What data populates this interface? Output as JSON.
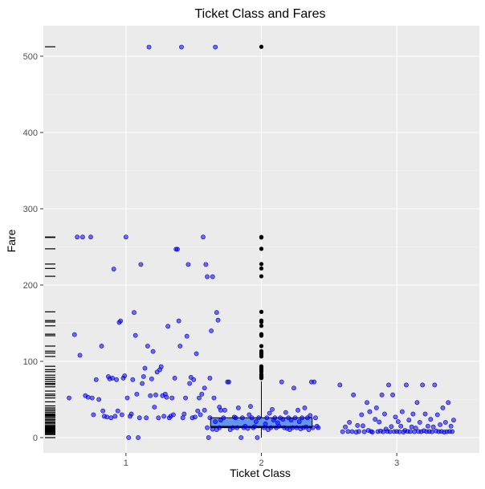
{
  "chart_data": {
    "type": "boxplot-jitter",
    "title": "Ticket Class and Fares",
    "xlabel": "Ticket Class",
    "ylabel": "Fare",
    "categories": [
      "1",
      "2",
      "3"
    ],
    "ylim": [
      -20,
      540
    ],
    "yticks": [
      0,
      100,
      200,
      300,
      400,
      500
    ],
    "grid": true,
    "colors": {
      "box": "#6495ed",
      "points": "#0000ff",
      "outliers": "#000000",
      "rug": "#000000"
    },
    "boxes": [
      {
        "category": "2",
        "q1": 13,
        "median": 14.25,
        "q3": 26,
        "whisker_low": 0,
        "whisker_high": 73.5,
        "outliers": [
          77.96,
          78.85,
          79.2,
          79.65,
          81.86,
          82.17,
          83.16,
          86.5,
          89.1,
          90,
          91.08,
          93.5,
          106.43,
          108.9,
          110.88,
          113.28,
          120,
          133.65,
          134.5,
          135.63,
          146.52,
          151.55,
          153.46,
          164.87,
          211.5,
          221.78,
          227.53,
          247.52,
          262.37,
          263,
          512.33
        ]
      }
    ],
    "rug_values": [
      0,
      4,
      5,
      6.24,
      6.5,
      7,
      7.25,
      7.5,
      7.75,
      8,
      8.5,
      9,
      9.5,
      10.5,
      11.5,
      12.5,
      13,
      14,
      15,
      16,
      18,
      19.5,
      21,
      23,
      24,
      26,
      27.7,
      29,
      30,
      31,
      33,
      35,
      37,
      39,
      41.58,
      46.9,
      52,
      55,
      57,
      61,
      66.6,
      69.55,
      71,
      73.5,
      76.29,
      78.85,
      81.86,
      86.5,
      89.1,
      93.5,
      106.43,
      110.88,
      113.28,
      120,
      133.65,
      135.63,
      146.52,
      151.55,
      153.46,
      164.87,
      211.5,
      221.78,
      227.53,
      247.52,
      262.37,
      263,
      512.33
    ],
    "points": {
      "1": [
        [
          -0.42,
          52
        ],
        [
          -0.38,
          135
        ],
        [
          -0.36,
          263
        ],
        [
          -0.34,
          108
        ],
        [
          -0.32,
          263
        ],
        [
          -0.3,
          55
        ],
        [
          -0.28,
          53
        ],
        [
          -0.26,
          263
        ],
        [
          -0.25,
          52
        ],
        [
          -0.24,
          30
        ],
        [
          -0.22,
          76
        ],
        [
          -0.2,
          50
        ],
        [
          -0.18,
          120
        ],
        [
          -0.17,
          35
        ],
        [
          -0.16,
          28
        ],
        [
          -0.14,
          27
        ],
        [
          -0.13,
          80
        ],
        [
          -0.12,
          77
        ],
        [
          -0.11,
          26
        ],
        [
          -0.1,
          78
        ],
        [
          -0.09,
          221
        ],
        [
          -0.08,
          28
        ],
        [
          -0.07,
          76
        ],
        [
          -0.06,
          35
        ],
        [
          -0.05,
          151
        ],
        [
          -0.04,
          153
        ],
        [
          -0.03,
          30
        ],
        [
          -0.02,
          78
        ],
        [
          -0.01,
          81
        ],
        [
          0,
          263
        ],
        [
          0.01,
          52
        ],
        [
          0.02,
          0
        ],
        [
          0.03,
          28
        ],
        [
          0.04,
          31
        ],
        [
          0.05,
          76
        ],
        [
          0.06,
          164
        ],
        [
          0.07,
          134
        ],
        [
          0.08,
          57
        ],
        [
          0.09,
          0
        ],
        [
          0.1,
          26
        ],
        [
          0.11,
          227
        ],
        [
          0.12,
          71
        ],
        [
          0.13,
          80
        ],
        [
          0.14,
          91
        ],
        [
          0.15,
          26
        ],
        [
          0.16,
          120
        ],
        [
          0.17,
          512
        ],
        [
          0.18,
          55
        ],
        [
          0.19,
          77
        ],
        [
          0.2,
          113
        ],
        [
          0.21,
          40
        ],
        [
          0.22,
          56
        ],
        [
          0.23,
          86
        ],
        [
          0.24,
          26
        ],
        [
          0.25,
          89
        ],
        [
          0.26,
          93
        ],
        [
          0.27,
          55
        ],
        [
          0.28,
          28
        ],
        [
          0.29,
          57
        ],
        [
          0.3,
          53
        ],
        [
          0.31,
          146
        ],
        [
          0.32,
          26
        ],
        [
          0.33,
          28
        ],
        [
          0.34,
          52
        ],
        [
          0.35,
          30
        ],
        [
          0.36,
          78
        ],
        [
          0.37,
          247
        ],
        [
          0.38,
          247
        ],
        [
          0.39,
          153
        ],
        [
          0.4,
          120
        ],
        [
          0.41,
          512
        ],
        [
          0.42,
          26
        ],
        [
          0.43,
          31
        ],
        [
          0.44,
          52
        ],
        [
          0.45,
          133
        ],
        [
          0.46,
          227
        ],
        [
          0.47,
          71
        ],
        [
          0.48,
          79
        ],
        [
          0.49,
          26
        ],
        [
          0.5,
          76
        ],
        [
          0.51,
          27
        ],
        [
          0.52,
          110
        ],
        [
          0.53,
          35
        ],
        [
          0.54,
          52
        ],
        [
          0.55,
          30
        ],
        [
          0.56,
          57
        ],
        [
          0.57,
          263
        ],
        [
          0.58,
          36
        ],
        [
          0.59,
          227
        ],
        [
          0.6,
          211
        ],
        [
          0.61,
          0
        ],
        [
          0.62,
          78
        ],
        [
          0.63,
          140
        ],
        [
          0.64,
          211
        ],
        [
          0.65,
          52
        ],
        [
          0.66,
          512
        ],
        [
          0.67,
          164
        ],
        [
          0.68,
          154
        ],
        [
          0.69,
          40
        ],
        [
          0.7,
          36
        ]
      ],
      "2": [
        [
          -0.42,
          65
        ],
        [
          -0.4,
          13
        ],
        [
          -0.38,
          26
        ],
        [
          -0.36,
          11
        ],
        [
          -0.34,
          21
        ],
        [
          -0.33,
          10.5
        ],
        [
          -0.31,
          13
        ],
        [
          -0.3,
          23
        ],
        [
          -0.28,
          26
        ],
        [
          -0.27,
          36
        ],
        [
          -0.25,
          73
        ],
        [
          -0.24,
          73
        ],
        [
          -0.23,
          10.5
        ],
        [
          -0.21,
          13
        ],
        [
          -0.2,
          27
        ],
        [
          -0.19,
          26
        ],
        [
          -0.18,
          13
        ],
        [
          -0.17,
          39
        ],
        [
          -0.15,
          0
        ],
        [
          -0.14,
          26
        ],
        [
          -0.13,
          13
        ],
        [
          -0.12,
          15
        ],
        [
          -0.1,
          12
        ],
        [
          -0.09,
          30
        ],
        [
          -0.08,
          41
        ],
        [
          -0.07,
          26
        ],
        [
          -0.06,
          13
        ],
        [
          -0.05,
          14.5
        ],
        [
          -0.04,
          21
        ],
        [
          -0.03,
          0
        ],
        [
          -0.02,
          26
        ],
        [
          0.02,
          13
        ],
        [
          0.03,
          18
        ],
        [
          0.04,
          26
        ],
        [
          0.05,
          10.5
        ],
        [
          0.06,
          32
        ],
        [
          0.07,
          13
        ],
        [
          0.08,
          37
        ],
        [
          0.09,
          23
        ],
        [
          0.1,
          26
        ],
        [
          0.11,
          13
        ],
        [
          0.12,
          19.5
        ],
        [
          0.13,
          15
        ],
        [
          0.14,
          26
        ],
        [
          0.15,
          73
        ],
        [
          0.16,
          24
        ],
        [
          0.17,
          13
        ],
        [
          0.18,
          33
        ],
        [
          0.19,
          12
        ],
        [
          0.2,
          26
        ],
        [
          0.21,
          10.5
        ],
        [
          0.22,
          23
        ],
        [
          0.23,
          13
        ],
        [
          0.24,
          65
        ],
        [
          0.25,
          26
        ],
        [
          0.26,
          13
        ],
        [
          0.27,
          36
        ],
        [
          0.28,
          21
        ],
        [
          0.29,
          11.5
        ],
        [
          0.3,
          26
        ],
        [
          0.31,
          13
        ],
        [
          0.32,
          39
        ],
        [
          0.33,
          14
        ],
        [
          0.34,
          26
        ],
        [
          0.35,
          10.5
        ],
        [
          0.36,
          29
        ],
        [
          0.37,
          73
        ],
        [
          0.38,
          13
        ],
        [
          0.39,
          73
        ],
        [
          0.4,
          26
        ],
        [
          0.41,
          15
        ],
        [
          0.42,
          13
        ]
      ],
      "3": [
        [
          -0.42,
          69
        ],
        [
          -0.4,
          7.8
        ],
        [
          -0.38,
          14
        ],
        [
          -0.36,
          8
        ],
        [
          -0.35,
          20
        ],
        [
          -0.33,
          7.9
        ],
        [
          -0.32,
          56
        ],
        [
          -0.3,
          7.2
        ],
        [
          -0.29,
          16
        ],
        [
          -0.28,
          8.05
        ],
        [
          -0.26,
          30
        ],
        [
          -0.25,
          15.5
        ],
        [
          -0.24,
          7.75
        ],
        [
          -0.22,
          46
        ],
        [
          -0.21,
          9.5
        ],
        [
          -0.2,
          34
        ],
        [
          -0.19,
          8.05
        ],
        [
          -0.18,
          7.23
        ],
        [
          -0.16,
          24
        ],
        [
          -0.15,
          39
        ],
        [
          -0.14,
          7.9
        ],
        [
          -0.13,
          20.5
        ],
        [
          -0.12,
          8.66
        ],
        [
          -0.11,
          56
        ],
        [
          -0.1,
          7.75
        ],
        [
          -0.09,
          31
        ],
        [
          -0.08,
          11.1
        ],
        [
          -0.07,
          8.05
        ],
        [
          -0.06,
          69
        ],
        [
          -0.05,
          7.85
        ],
        [
          -0.04,
          14.5
        ],
        [
          -0.03,
          56
        ],
        [
          -0.02,
          7.9
        ],
        [
          -0.01,
          27
        ],
        [
          0,
          8.05
        ],
        [
          0.01,
          21
        ],
        [
          0.02,
          7.75
        ],
        [
          0.03,
          15
        ],
        [
          0.04,
          34
        ],
        [
          0.05,
          7.25
        ],
        [
          0.06,
          9.5
        ],
        [
          0.07,
          69
        ],
        [
          0.08,
          8.05
        ],
        [
          0.09,
          23
        ],
        [
          0.1,
          7.9
        ],
        [
          0.11,
          14
        ],
        [
          0.12,
          31
        ],
        [
          0.13,
          7.75
        ],
        [
          0.14,
          12.5
        ],
        [
          0.15,
          46
        ],
        [
          0.16,
          8.05
        ],
        [
          0.17,
          20
        ],
        [
          0.18,
          7.8
        ],
        [
          0.19,
          69
        ],
        [
          0.2,
          9
        ],
        [
          0.21,
          31
        ],
        [
          0.22,
          7.9
        ],
        [
          0.23,
          15
        ],
        [
          0.24,
          8.05
        ],
        [
          0.25,
          24
        ],
        [
          0.26,
          7.75
        ],
        [
          0.27,
          14
        ],
        [
          0.28,
          69
        ],
        [
          0.29,
          8.66
        ],
        [
          0.3,
          30
        ],
        [
          0.31,
          7.9
        ],
        [
          0.32,
          17
        ],
        [
          0.33,
          8.05
        ],
        [
          0.34,
          39
        ],
        [
          0.35,
          7.25
        ],
        [
          0.36,
          20
        ],
        [
          0.37,
          7.8
        ],
        [
          0.38,
          46
        ],
        [
          0.39,
          8.05
        ],
        [
          0.4,
          15
        ],
        [
          0.41,
          7.9
        ],
        [
          0.42,
          23
        ]
      ]
    }
  }
}
